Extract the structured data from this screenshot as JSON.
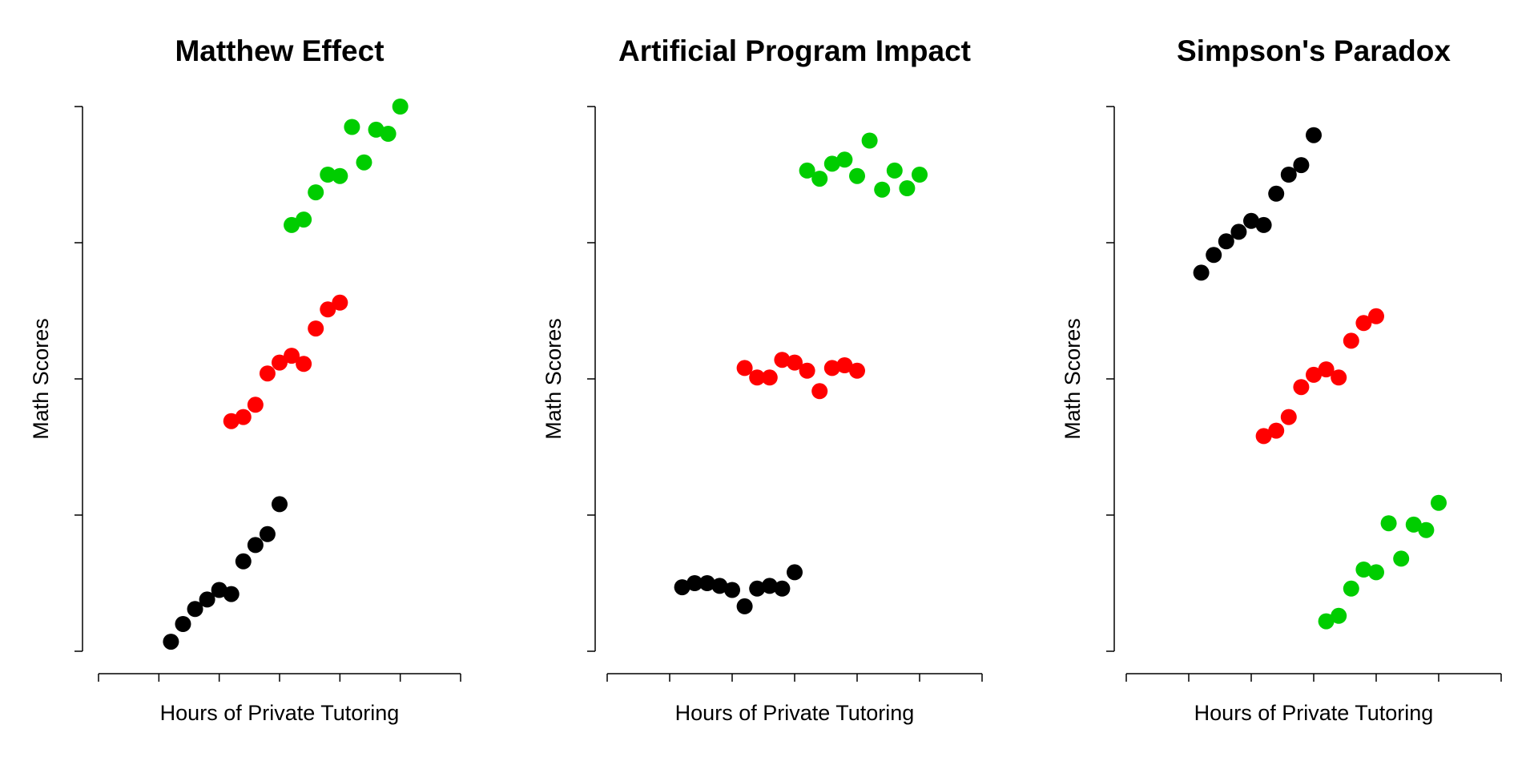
{
  "chart_data": [
    {
      "type": "scatter",
      "title": "Matthew Effect",
      "xlabel": "Hours of Private Tutoring",
      "ylabel": "Math Scores",
      "xlim": [
        0,
        6
      ],
      "ylim": [
        0,
        4
      ],
      "xticks": [
        0,
        1,
        2,
        3,
        4,
        5,
        6
      ],
      "yticks": [
        0,
        1,
        2,
        3,
        4
      ],
      "series": [
        {
          "color": "#000000",
          "x": [
            1.2,
            1.4,
            1.6,
            1.8,
            2.0,
            2.2,
            2.4,
            2.6,
            2.8,
            3.0
          ],
          "y": [
            0.07,
            0.2,
            0.31,
            0.38,
            0.45,
            0.42,
            0.66,
            0.78,
            0.86,
            1.08
          ]
        },
        {
          "color": "#ff0000",
          "x": [
            2.2,
            2.4,
            2.6,
            2.8,
            3.0,
            3.2,
            3.4,
            3.6,
            3.8,
            4.0
          ],
          "y": [
            1.69,
            1.72,
            1.81,
            2.04,
            2.12,
            2.17,
            2.11,
            2.37,
            2.51,
            2.56
          ]
        },
        {
          "color": "#00cd00",
          "x": [
            3.2,
            3.4,
            3.6,
            3.8,
            4.0,
            4.2,
            4.4,
            4.6,
            4.8,
            5.0
          ],
          "y": [
            3.13,
            3.17,
            3.37,
            3.5,
            3.49,
            3.85,
            3.59,
            3.83,
            3.8,
            4.0
          ]
        }
      ]
    },
    {
      "type": "scatter",
      "title": "Artificial Program Impact",
      "xlabel": "Hours of Private Tutoring",
      "ylabel": "Math Scores",
      "xlim": [
        0,
        6
      ],
      "ylim": [
        0,
        4
      ],
      "xticks": [
        0,
        1,
        2,
        3,
        4,
        5,
        6
      ],
      "yticks": [
        0,
        1,
        2,
        3,
        4
      ],
      "series": [
        {
          "color": "#000000",
          "x": [
            1.2,
            1.4,
            1.6,
            1.8,
            2.0,
            2.2,
            2.4,
            2.6,
            2.8,
            3.0
          ],
          "y": [
            0.47,
            0.5,
            0.5,
            0.48,
            0.45,
            0.33,
            0.46,
            0.48,
            0.46,
            0.58
          ]
        },
        {
          "color": "#ff0000",
          "x": [
            2.2,
            2.4,
            2.6,
            2.8,
            3.0,
            3.2,
            3.4,
            3.6,
            3.8,
            4.0
          ],
          "y": [
            2.08,
            2.01,
            2.01,
            2.14,
            2.12,
            2.06,
            1.91,
            2.08,
            2.1,
            2.06
          ]
        },
        {
          "color": "#00cd00",
          "x": [
            3.2,
            3.4,
            3.6,
            3.8,
            4.0,
            4.2,
            4.4,
            4.6,
            4.8,
            5.0
          ],
          "y": [
            3.53,
            3.47,
            3.58,
            3.61,
            3.49,
            3.75,
            3.39,
            3.53,
            3.4,
            3.5
          ]
        }
      ]
    },
    {
      "type": "scatter",
      "title": "Simpson's Paradox",
      "xlabel": "Hours of Private Tutoring",
      "ylabel": "Math Scores",
      "xlim": [
        0,
        6
      ],
      "ylim": [
        0,
        4
      ],
      "xticks": [
        0,
        1,
        2,
        3,
        4,
        5,
        6
      ],
      "yticks": [
        0,
        1,
        2,
        3,
        4
      ],
      "series": [
        {
          "color": "#000000",
          "x": [
            1.2,
            1.4,
            1.6,
            1.8,
            2.0,
            2.2,
            2.4,
            2.6,
            2.8,
            3.0
          ],
          "y": [
            2.78,
            2.91,
            3.01,
            3.08,
            3.16,
            3.13,
            3.36,
            3.5,
            3.57,
            3.79
          ]
        },
        {
          "color": "#ff0000",
          "x": [
            2.2,
            2.4,
            2.6,
            2.8,
            3.0,
            3.2,
            3.4,
            3.6,
            3.8,
            4.0
          ],
          "y": [
            1.58,
            1.62,
            1.72,
            1.94,
            2.03,
            2.07,
            2.01,
            2.28,
            2.41,
            2.46
          ]
        },
        {
          "color": "#00cd00",
          "x": [
            3.2,
            3.4,
            3.6,
            3.8,
            4.0,
            4.2,
            4.4,
            4.6,
            4.8,
            5.0
          ],
          "y": [
            0.22,
            0.26,
            0.46,
            0.6,
            0.58,
            0.94,
            0.68,
            0.93,
            0.89,
            1.09
          ]
        }
      ]
    }
  ]
}
